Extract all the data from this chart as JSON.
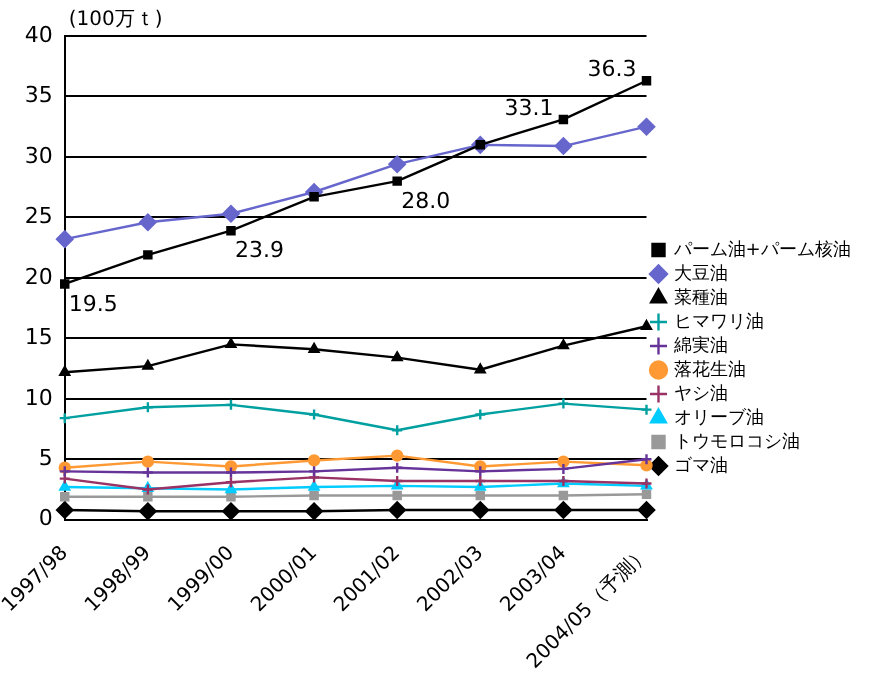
{
  "chart_data": {
    "type": "line",
    "ylabel": "(100万ｔ)",
    "categories": [
      "1997/98",
      "1998/99",
      "1999/00",
      "2000/01",
      "2001/02",
      "2002/03",
      "2003/04",
      "2004/05（予測）"
    ],
    "ylim": [
      0,
      40
    ],
    "yticks": [
      0,
      5,
      10,
      15,
      20,
      25,
      30,
      35,
      40
    ],
    "grid": "y",
    "legend": "right",
    "series": [
      {
        "name": "パーム油+パーム核油",
        "color": "#000000",
        "marker": "square",
        "values": [
          19.5,
          21.9,
          23.9,
          26.7,
          28.0,
          31.0,
          33.1,
          36.3
        ],
        "value_labels": [
          "19.5",
          null,
          "23.9",
          null,
          "28.0",
          null,
          "33.1",
          "36.3"
        ]
      },
      {
        "name": "大豆油",
        "color": "#6666cc",
        "marker": "diamond",
        "values": [
          23.2,
          24.6,
          25.3,
          27.1,
          29.4,
          31.0,
          30.9,
          32.5
        ]
      },
      {
        "name": "菜種油",
        "color": "#000000",
        "marker": "triangle",
        "values": [
          12.2,
          12.7,
          14.5,
          14.1,
          13.4,
          12.4,
          14.4,
          16.0
        ]
      },
      {
        "name": "ヒマワリ油",
        "color": "#00a0a0",
        "marker": "cross",
        "values": [
          8.4,
          9.3,
          9.5,
          8.7,
          7.4,
          8.7,
          9.6,
          9.1
        ]
      },
      {
        "name": "綿実油",
        "color": "#663399",
        "marker": "cross",
        "values": [
          4.0,
          3.9,
          3.9,
          4.0,
          4.3,
          4.0,
          4.2,
          5.0
        ]
      },
      {
        "name": "落花生油",
        "color": "#ff9933",
        "marker": "circle",
        "values": [
          4.3,
          4.8,
          4.4,
          4.9,
          5.3,
          4.4,
          4.8,
          4.5
        ]
      },
      {
        "name": "ヤシ油",
        "color": "#993366",
        "marker": "cross",
        "values": [
          3.4,
          2.5,
          3.1,
          3.5,
          3.2,
          3.2,
          3.2,
          3.0
        ]
      },
      {
        "name": "オリーブ油",
        "color": "#00ccff",
        "marker": "triangle",
        "values": [
          2.7,
          2.6,
          2.5,
          2.7,
          2.8,
          2.7,
          3.0,
          2.8
        ]
      },
      {
        "name": "トウモロコシ油",
        "color": "#999999",
        "marker": "square",
        "values": [
          1.9,
          1.9,
          1.9,
          2.0,
          2.0,
          2.0,
          2.0,
          2.1
        ]
      },
      {
        "name": "ゴマ油",
        "color": "#000000",
        "marker": "diamond",
        "values": [
          0.8,
          0.7,
          0.7,
          0.7,
          0.8,
          0.8,
          0.8,
          0.8
        ]
      }
    ]
  }
}
